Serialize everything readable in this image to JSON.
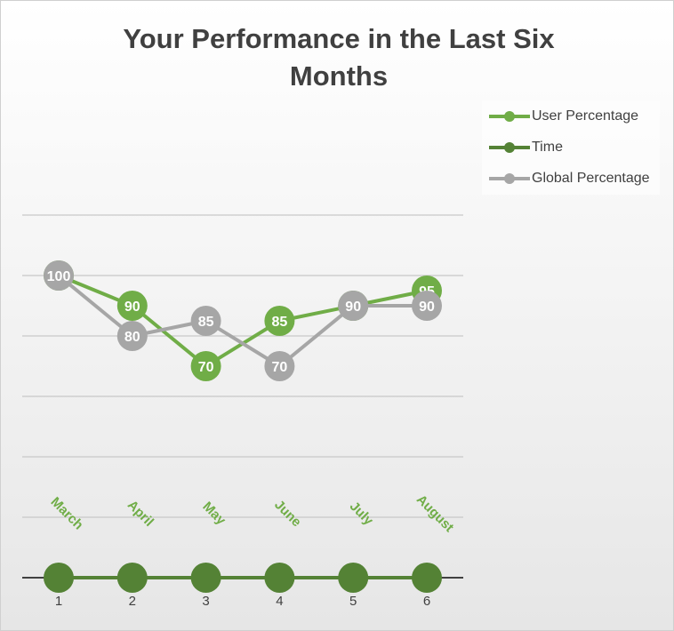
{
  "chart_data": {
    "type": "line",
    "title": "Your Performance in the Last Six Months",
    "x": [
      1,
      2,
      3,
      4,
      5,
      6
    ],
    "months": [
      "March",
      "April",
      "May",
      "June",
      "July",
      "August"
    ],
    "series": [
      {
        "name": "User Percentage",
        "values": [
          100,
          90,
          70,
          85,
          90,
          95
        ],
        "color": "#70ad47"
      },
      {
        "name": "Time",
        "values": [
          0,
          0,
          0,
          0,
          0,
          0
        ],
        "color": "#548235"
      },
      {
        "name": "Global Percentage",
        "values": [
          100,
          80,
          85,
          70,
          90,
          90
        ],
        "color": "#a6a6a6"
      }
    ],
    "ylim": [
      0,
      120
    ],
    "grid": true,
    "legend_position": "right"
  }
}
